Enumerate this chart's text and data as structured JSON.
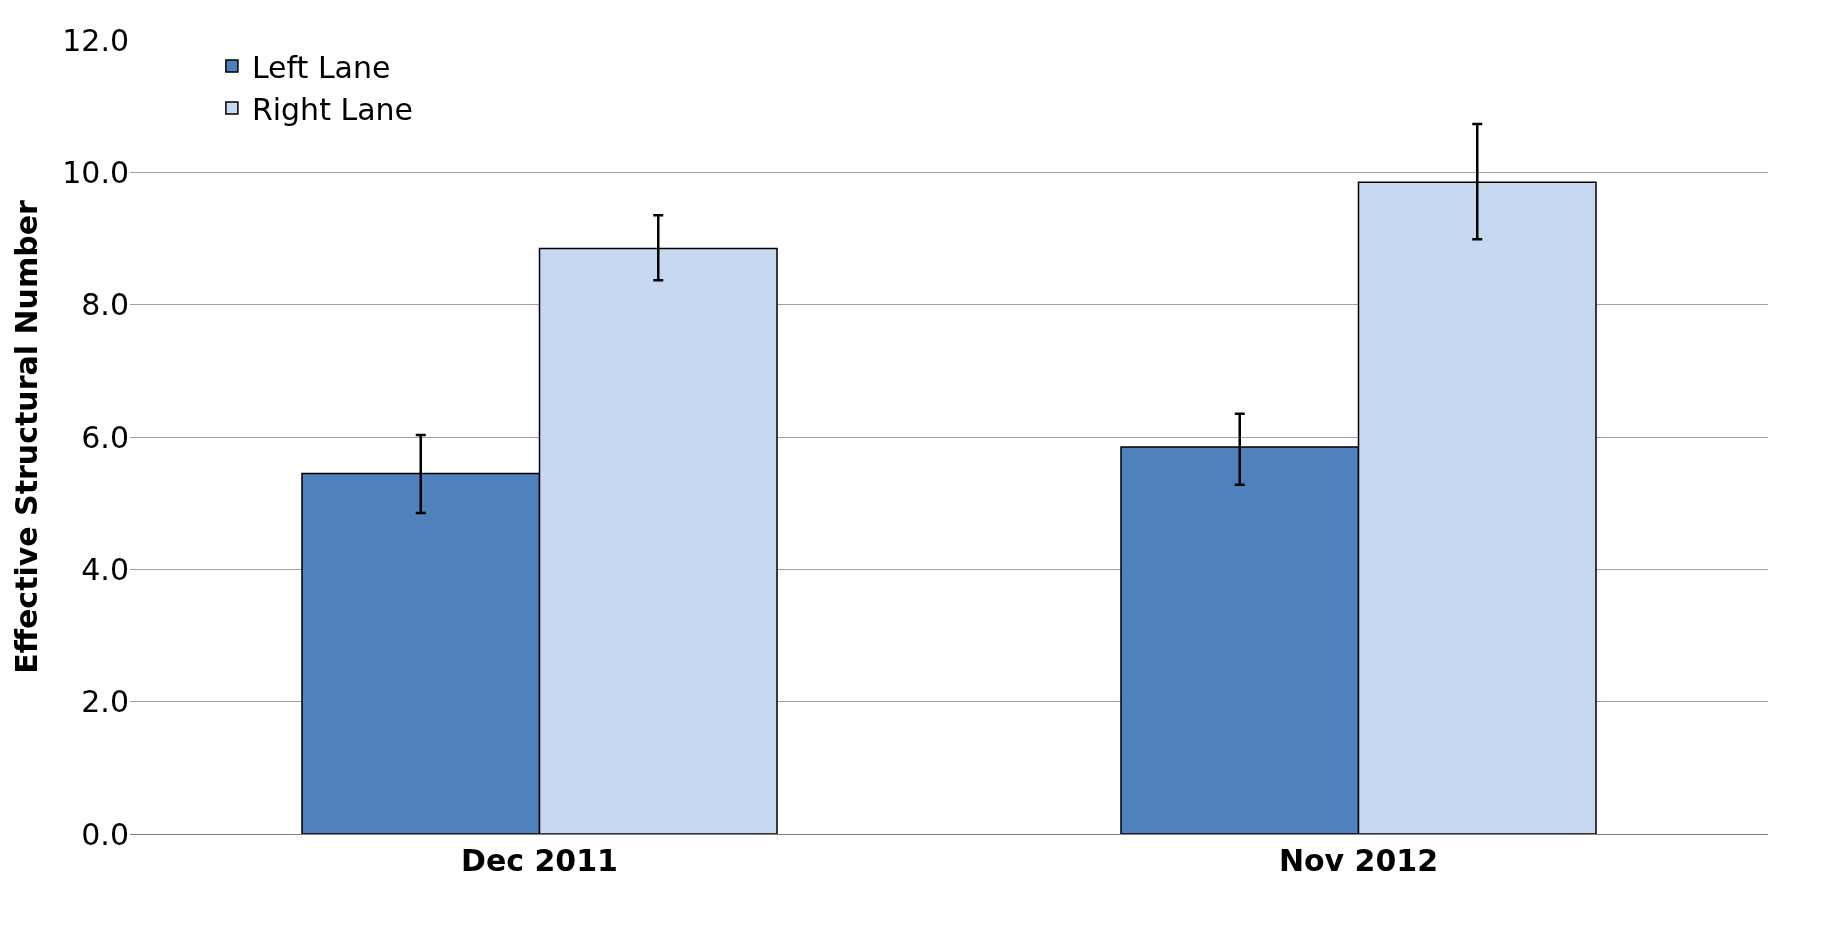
{
  "chart_data": {
    "type": "bar",
    "ylabel": "Effective Structural Number",
    "categories": [
      "Dec 2011",
      "Nov 2012"
    ],
    "series": [
      {
        "name": "Left Lane",
        "color": "#4f81bd",
        "values": [
          5.45,
          5.85
        ],
        "errors": [
          [
            4.85,
            6.03
          ],
          [
            5.28,
            6.35
          ]
        ]
      },
      {
        "name": "Right Lane",
        "color": "#c6d9f1",
        "values": [
          8.85,
          9.85
        ],
        "errors": [
          [
            8.37,
            9.35
          ],
          [
            8.99,
            10.73
          ]
        ]
      }
    ],
    "ylim": [
      0,
      12
    ],
    "yticks": [
      {
        "value": 0,
        "label": "0.0"
      },
      {
        "value": 2,
        "label": "2.0"
      },
      {
        "value": 4,
        "label": "4.0"
      },
      {
        "value": 6,
        "label": "6.0"
      },
      {
        "value": 8,
        "label": "8.0"
      },
      {
        "value": 10,
        "label": "10.0"
      },
      {
        "value": 12,
        "label": "12.0"
      }
    ],
    "grid": "y",
    "legend": "top left"
  }
}
